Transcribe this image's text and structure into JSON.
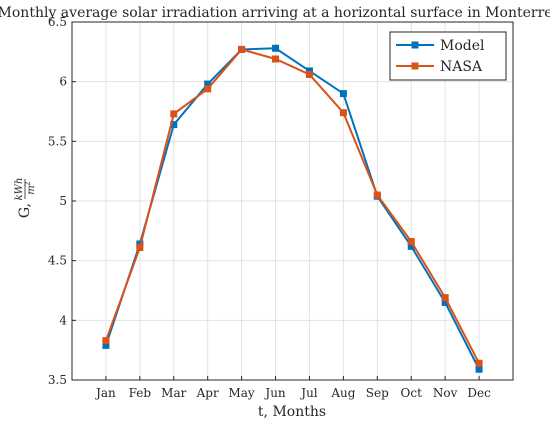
{
  "chart_data": {
    "type": "line",
    "title": "Monthly average solar irradiation arriving at a horizontal surface in Monterrey",
    "xlabel": "t, Months",
    "ylabel": {
      "prefix": "G,",
      "numerator": "kWh",
      "denominator": "m",
      "denominator_exponent": "2"
    },
    "categories": [
      "Jan",
      "Feb",
      "Mar",
      "Apr",
      "May",
      "Jun",
      "Jul",
      "Aug",
      "Sep",
      "Oct",
      "Nov",
      "Dec"
    ],
    "ylim": [
      3.5,
      6.5
    ],
    "yticks": [
      "3.5",
      "4",
      "4.5",
      "5",
      "5.5",
      "6",
      "6.5"
    ],
    "grid": true,
    "legend_position": "top-right",
    "series": [
      {
        "name": "Model",
        "color": "#0072bd",
        "marker": "square",
        "values": [
          3.79,
          4.64,
          5.64,
          5.98,
          6.27,
          6.28,
          6.09,
          5.9,
          5.04,
          4.62,
          4.15,
          3.59
        ]
      },
      {
        "name": "NASA",
        "color": "#d95319",
        "marker": "square",
        "values": [
          3.83,
          4.61,
          5.73,
          5.94,
          6.27,
          6.19,
          6.06,
          5.74,
          5.05,
          4.66,
          4.19,
          3.64
        ]
      }
    ]
  }
}
